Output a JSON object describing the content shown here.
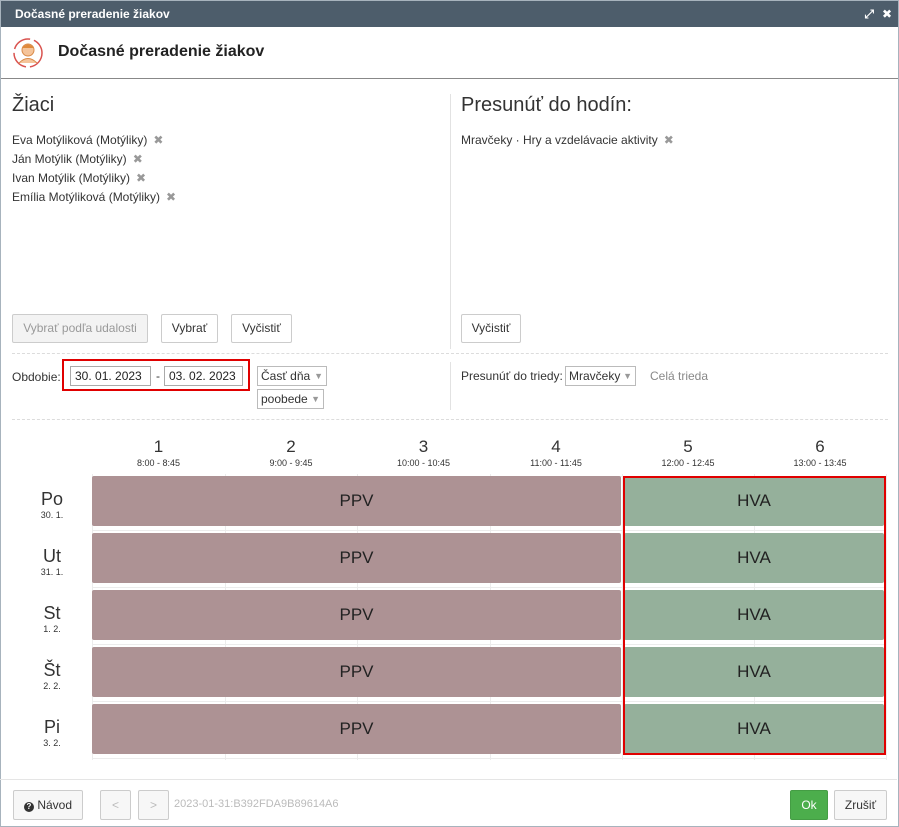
{
  "window": {
    "title": "Dočasné preradenie žiakov",
    "header_title": "Dočasné preradenie žiakov"
  },
  "students": {
    "title": "Žiaci",
    "items": [
      {
        "label": "Eva Motýliková (Motýliky)"
      },
      {
        "label": "Ján Motýlik (Motýliky)"
      },
      {
        "label": "Ivan Motýlik (Motýliky)"
      },
      {
        "label": "Emília Motýliková (Motýliky)"
      }
    ],
    "remove_glyph": "✖",
    "buttons": {
      "by_event": "Vybrať podľa udalosti",
      "select": "Vybrať",
      "clear": "Vyčistiť"
    }
  },
  "target": {
    "title": "Presunúť do hodín:",
    "items": [
      {
        "label": "Mravčeky · Hry a vzdelávacie aktivity"
      }
    ],
    "clear": "Vyčistiť"
  },
  "period": {
    "label": "Obdobie:",
    "from": "30. 01. 2023",
    "separator": "-",
    "to": "03. 02. 2023",
    "day_part_label": "Časť dňa",
    "day_part_value": "poobede"
  },
  "move_to_class": {
    "label": "Presunúť do triedy:",
    "value": "Mravčeky",
    "whole_class": "Celá trieda"
  },
  "timetable": {
    "periods": [
      {
        "num": "1",
        "time": "8:00 - 8:45"
      },
      {
        "num": "2",
        "time": "9:00 - 9:45"
      },
      {
        "num": "3",
        "time": "10:00 - 10:45"
      },
      {
        "num": "4",
        "time": "11:00 - 11:45"
      },
      {
        "num": "5",
        "time": "12:00 - 12:45"
      },
      {
        "num": "6",
        "time": "13:00 - 13:45"
      }
    ],
    "days": [
      {
        "name": "Po",
        "date": "30. 1.",
        "blocks": [
          "PPV",
          "HVA"
        ]
      },
      {
        "name": "Ut",
        "date": "31. 1.",
        "blocks": [
          "PPV",
          "HVA"
        ]
      },
      {
        "name": "St",
        "date": "1. 2.",
        "blocks": [
          "PPV",
          "HVA"
        ]
      },
      {
        "name": "Št",
        "date": "2. 2.",
        "blocks": [
          "PPV",
          "HVA"
        ]
      },
      {
        "name": "Pi",
        "date": "3. 2.",
        "blocks": [
          "PPV",
          "HVA"
        ]
      }
    ],
    "colors": {
      "PPV": "#ad9294",
      "HVA": "#95b09b",
      "highlight": "#e00000"
    }
  },
  "footer": {
    "help": "Návod",
    "prev": "<",
    "next": ">",
    "id": "2023-01-31:B392FDA9B89614A6",
    "ok": "Ok",
    "cancel": "Zrušiť"
  }
}
